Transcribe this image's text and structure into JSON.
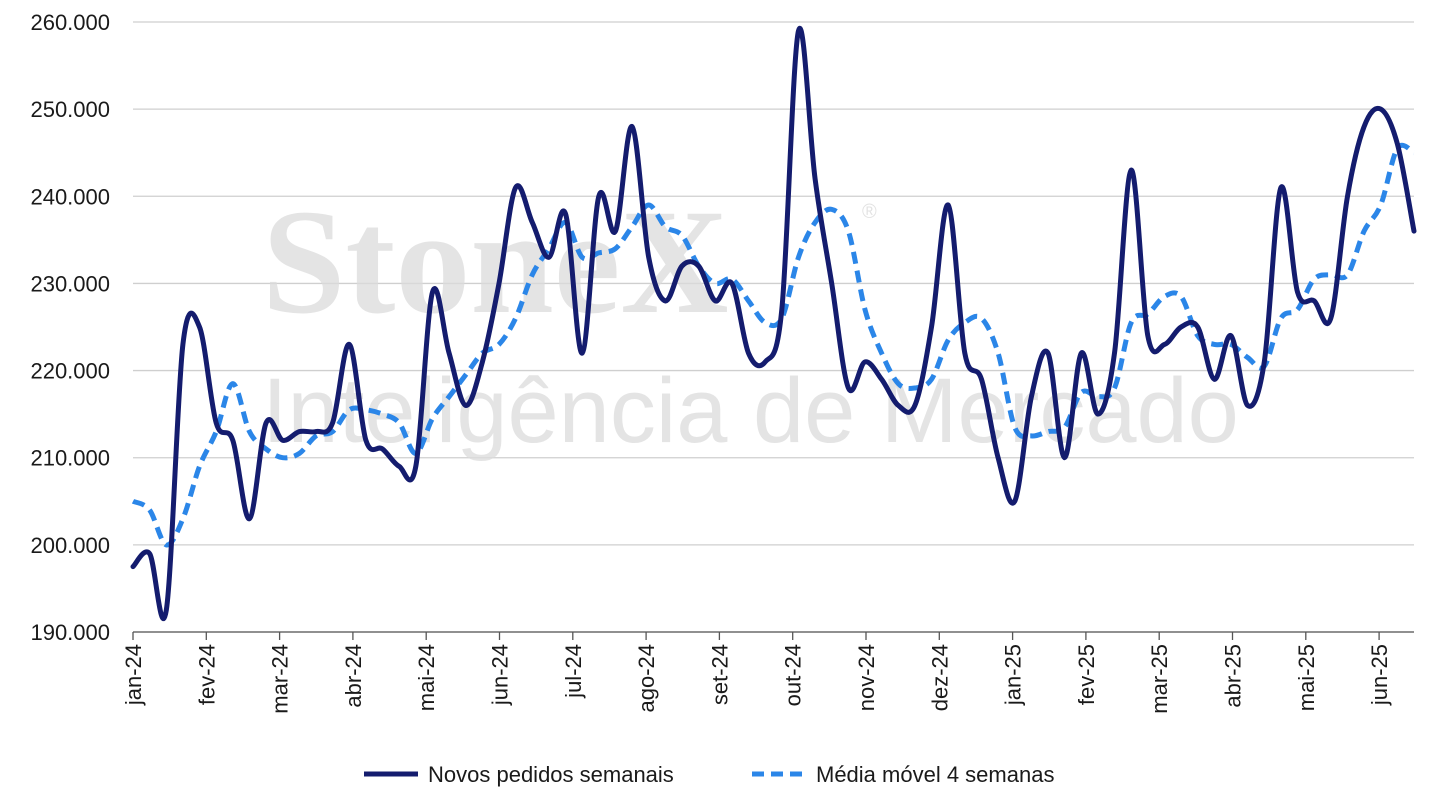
{
  "chart_data": {
    "type": "line",
    "title": "",
    "xlabel": "",
    "ylabel": "",
    "ylim": [
      190000,
      260000
    ],
    "y_ticks": [
      190000,
      200000,
      210000,
      220000,
      230000,
      240000,
      250000,
      260000
    ],
    "y_tick_labels": [
      "190.000",
      "200.000",
      "210.000",
      "220.000",
      "230.000",
      "240.000",
      "250.000",
      "260.000"
    ],
    "x_tick_labels": [
      "jan-24",
      "fev-24",
      "mar-24",
      "abr-24",
      "mai-24",
      "jun-24",
      "jul-24",
      "ago-24",
      "set-24",
      "out-24",
      "nov-24",
      "dez-24",
      "jan-25",
      "fev-25",
      "mar-25",
      "abr-25",
      "mai-25",
      "jun-25"
    ],
    "grid": true,
    "legend_position": "bottom",
    "series": [
      {
        "name": "Novos pedidos semanais",
        "color": "#141c6e",
        "style": "solid",
        "values": [
          197500,
          199000,
          192500,
          223000,
          225000,
          214000,
          212000,
          203000,
          214000,
          212000,
          213000,
          213000,
          214000,
          223000,
          212000,
          211000,
          209000,
          209000,
          229000,
          222000,
          216000,
          221000,
          230000,
          241000,
          237000,
          233000,
          238000,
          222000,
          240000,
          236000,
          248000,
          233000,
          228000,
          232000,
          232000,
          228000,
          230000,
          222000,
          221000,
          227000,
          259000,
          242000,
          230000,
          218000,
          221000,
          219000,
          216000,
          216000,
          225000,
          239000,
          222000,
          219000,
          210000,
          205000,
          217000,
          222000,
          210000,
          222000,
          215000,
          222000,
          243000,
          224000,
          223000,
          225000,
          225000,
          219000,
          224000,
          216000,
          221000,
          241000,
          229000,
          228000,
          226000,
          240000,
          248000,
          250000,
          246000,
          236000
        ],
        "extra": []
      },
      {
        "name": "Média móvel 4 semanas",
        "color": "#2b86e8",
        "style": "dashed",
        "values": [
          205000,
          204000,
          200000,
          203000,
          209000,
          213000,
          218500,
          213000,
          211000,
          210000,
          210500,
          212500,
          213000,
          215500,
          215500,
          215000,
          214000,
          210500,
          214500,
          217000,
          219500,
          222000,
          223000,
          226000,
          231000,
          234000,
          237000,
          233000,
          233500,
          234000,
          236500,
          239000,
          236500,
          235500,
          232000,
          230000,
          230500,
          228000,
          225500,
          226000,
          233000,
          237000,
          238500,
          236000,
          227000,
          222000,
          218500,
          218000,
          219000,
          223500,
          225500,
          226000,
          222000,
          213500,
          212500,
          213000,
          213500,
          217500,
          217000,
          218000,
          225500,
          226500,
          228500,
          228500,
          224000,
          223000,
          223000,
          221500,
          220500,
          226000,
          227000,
          230500,
          231000,
          231000,
          236000,
          239000,
          245500,
          245000
        ],
        "extra": []
      }
    ]
  },
  "legend": {
    "series1_label": "Novos pedidos semanais",
    "series2_label": "Média móvel 4 semanas"
  },
  "watermark": {
    "brand": "StoneX",
    "registered": "®",
    "tagline": "Inteligência de Mercado"
  }
}
